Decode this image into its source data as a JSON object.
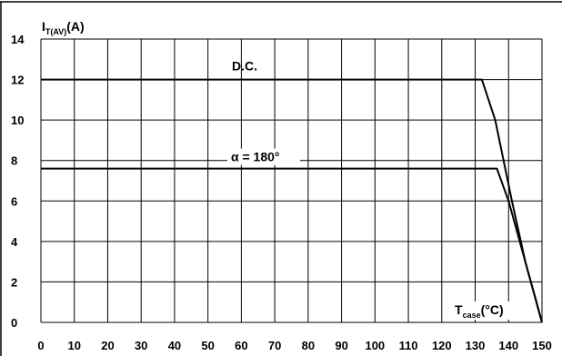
{
  "chart_data": {
    "type": "line",
    "title": "",
    "xlabel": {
      "main": "T",
      "sub": "case",
      "unit": "(°C)"
    },
    "ylabel": {
      "main": "I",
      "sub": "T(AV)",
      "unit": "(A)"
    },
    "xlim": [
      0,
      150
    ],
    "ylim": [
      0,
      14
    ],
    "x_ticks": [
      0,
      10,
      20,
      30,
      40,
      50,
      60,
      70,
      80,
      90,
      100,
      110,
      120,
      130,
      140,
      150
    ],
    "y_ticks": [
      0,
      2,
      4,
      6,
      8,
      10,
      12,
      14
    ],
    "grid": true,
    "series": [
      {
        "name": "D.C.",
        "points": [
          [
            0,
            12
          ],
          [
            132,
            12
          ],
          [
            136,
            10
          ],
          [
            141,
            6
          ],
          [
            145,
            3
          ],
          [
            150,
            0
          ]
        ]
      },
      {
        "name": "α = 180°",
        "points": [
          [
            0,
            7.6
          ],
          [
            136.5,
            7.6
          ],
          [
            140,
            6
          ],
          [
            145,
            3
          ],
          [
            150,
            0
          ]
        ]
      }
    ],
    "colors": {
      "line": "#000000",
      "grid": "#000000",
      "background": "#ffffff"
    }
  }
}
